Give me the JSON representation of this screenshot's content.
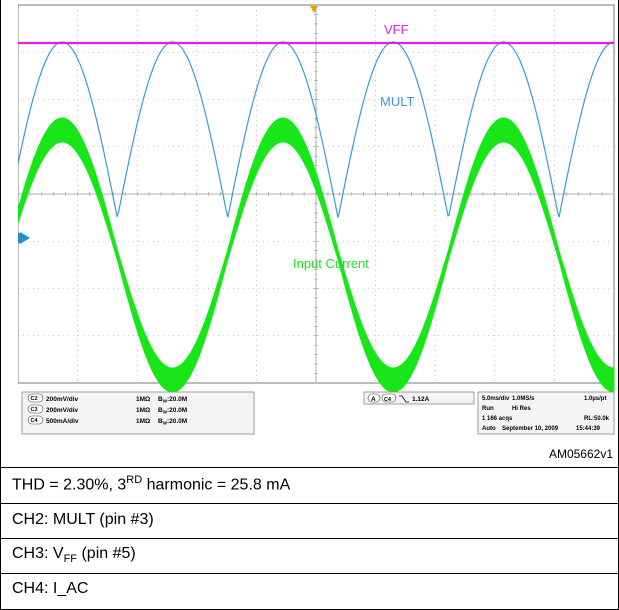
{
  "chart_data": {
    "type": "line",
    "channels": [
      {
        "badge": "C2",
        "scale": "200mV/div",
        "coupling": "1MΩ",
        "bw_prefix": "B",
        "bw_sub": "W",
        "bw_value": ":20.0M"
      },
      {
        "badge": "C3",
        "scale": "200mV/div",
        "coupling": "1MΩ",
        "bw_prefix": "B",
        "bw_sub": "W",
        "bw_value": ":20.0M"
      },
      {
        "badge": "C4",
        "scale": "500mA/div",
        "coupling": "1MΩ",
        "bw_prefix": "B",
        "bw_sub": "W",
        "bw_value": ":20.0M"
      }
    ],
    "series": [
      {
        "name": "VFF",
        "color": "#e020e0",
        "shape": "dc"
      },
      {
        "name": "MULT",
        "color": "#3a9ad9",
        "shape": "rectified-sine"
      },
      {
        "name": "Input Current",
        "color": "#19e619",
        "shape": "sine"
      }
    ],
    "trigger": {
      "label": "A",
      "channel": "C4",
      "level": "1.12A"
    },
    "timebase": {
      "row1": [
        "5.0ms/div",
        "1.0MS/s",
        "1.0µs/pt"
      ],
      "row2": [
        "Run",
        "Hi Res",
        ""
      ],
      "row3": [
        "1 166 acqs",
        "",
        "RL:50.0k"
      ],
      "row4": [
        "Auto",
        "September 10, 2009",
        "15:44:39"
      ]
    },
    "grid": true,
    "periods_shown": 2.7
  },
  "figure_id": "AM05662v1",
  "captions": {
    "thd": {
      "pre": "THD = 2.30%, 3",
      "sup": "RD",
      "post": " harmonic = 25.8 mA"
    },
    "ch2": "CH2: MULT (pin #3)",
    "ch3": {
      "pre": "CH3: V",
      "sub": "FF",
      "post": " (pin #5)"
    },
    "ch4": "CH4: I_AC"
  },
  "colors": {
    "screen_bg": "#ffffff",
    "grid": "#9a9a9a",
    "vff": "#e020e0",
    "mult": "#3a9ad9",
    "current": "#19e619",
    "trigger_marker": "#e8a200"
  }
}
